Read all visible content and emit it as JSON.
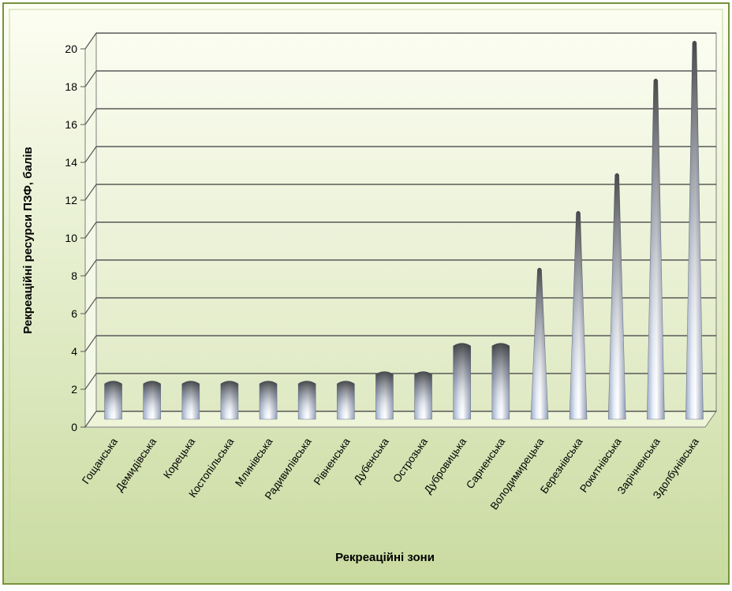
{
  "chart_data": {
    "type": "bar",
    "title": "",
    "xlabel": "Рекреаційні зони",
    "ylabel": "Рекреаційні ресурси ПЗФ, балів",
    "ylim": [
      0,
      20
    ],
    "yticks": [
      0,
      2,
      4,
      6,
      8,
      10,
      12,
      14,
      16,
      18,
      20
    ],
    "grid": true,
    "legend": "none",
    "categories": [
      "Гощанська",
      "Демидівська",
      "Корецька",
      "Костопільська",
      "Млинівська",
      "Радивилівська",
      "Рівненська",
      "Дубенська",
      "Острозька",
      "Дубровицька",
      "Сарненська",
      "Володимирецька",
      "Березнівська",
      "Рокитнівська",
      "Зарічненська",
      "Здолбунівська"
    ],
    "values": [
      2,
      2,
      2,
      2,
      2,
      2,
      2,
      2.5,
      2.5,
      4,
      4,
      8,
      11,
      13,
      18,
      20
    ],
    "colors": {
      "background_outer": "#ffffff",
      "frame_border": "#77933c",
      "plot_top": "#fcfdf0",
      "plot_bottom": "#c4d79b",
      "gridline": "#595959",
      "bar_light": "#c6d9f1",
      "bar_dark": "#595959"
    }
  }
}
